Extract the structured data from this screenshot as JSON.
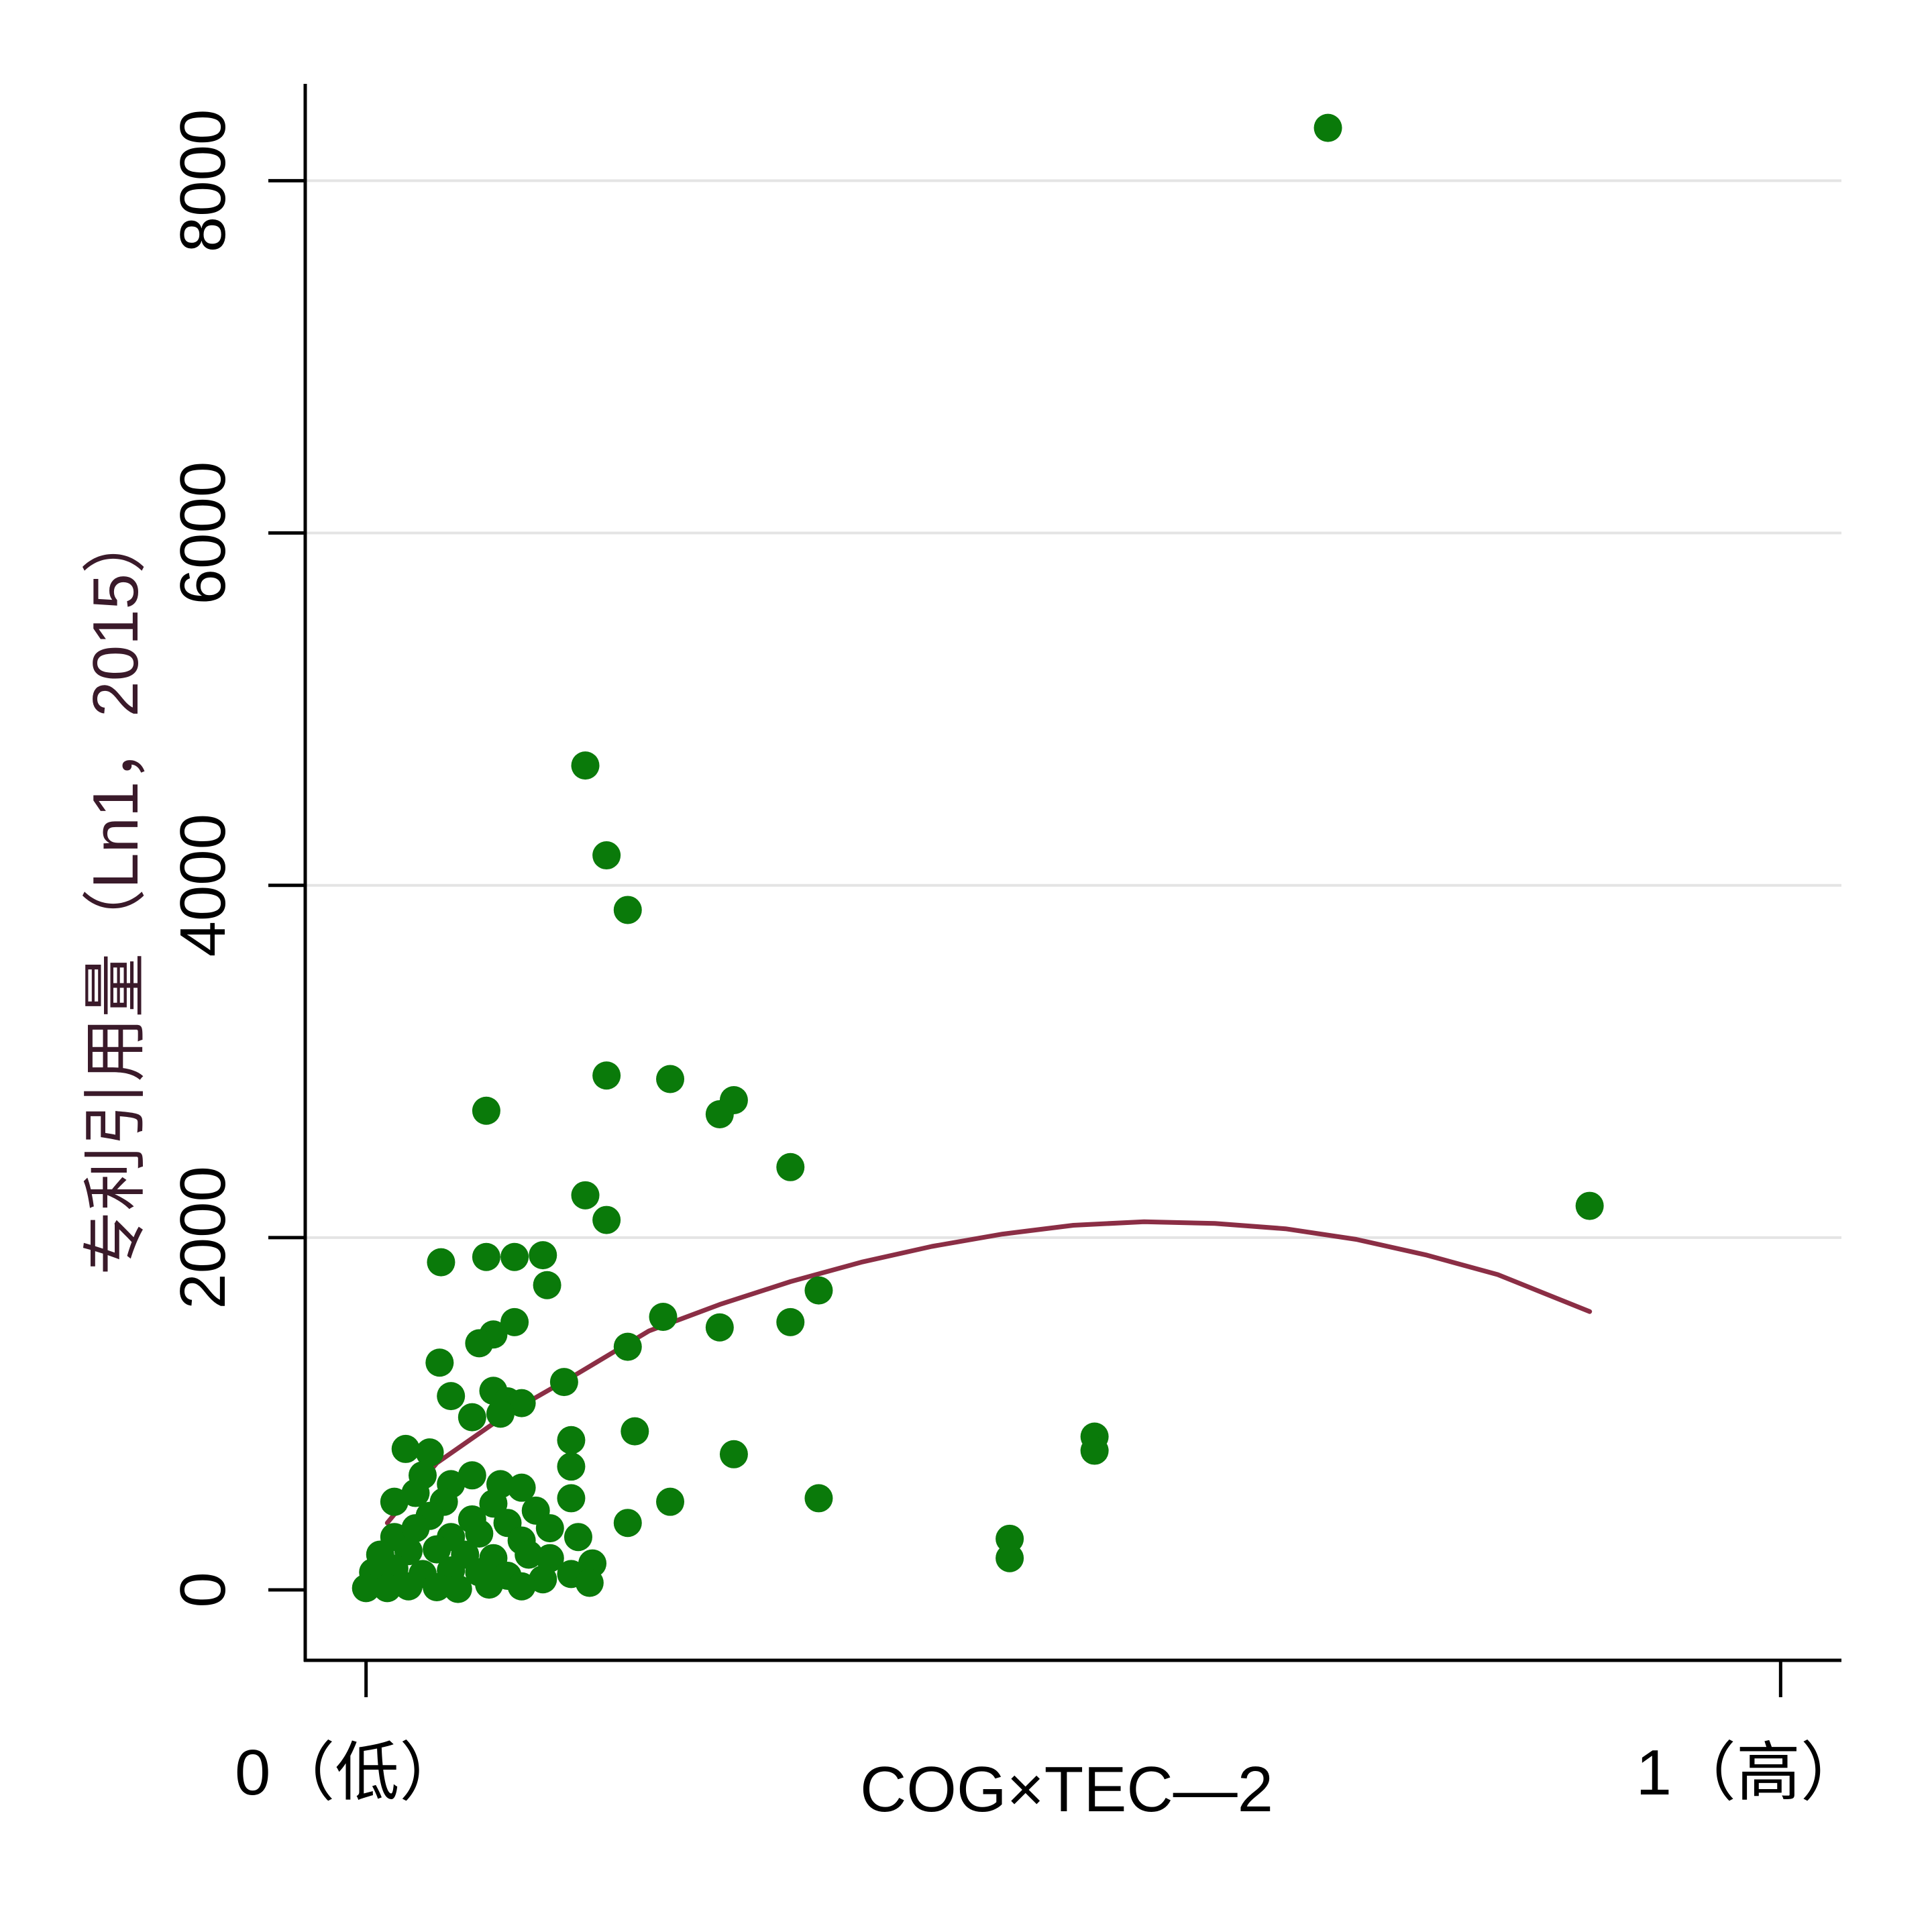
{
  "chart_data": {
    "type": "scatter",
    "xlabel": "COG×TEC—2",
    "ylabel": "专利引用量（Ln1，2015）",
    "x_tick_labels": [
      "0（低）",
      "1（高）"
    ],
    "x_ticks": [
      0,
      1
    ],
    "xlim": [
      -0.043,
      1.043
    ],
    "y_ticks": [
      0,
      2000,
      4000,
      6000,
      8000
    ],
    "ylim": [
      -400,
      8550
    ],
    "grid": true,
    "colors": {
      "points": "#0a7a0a",
      "fit": "#8b2e45",
      "grid": "#e4e4e4",
      "axis": "#000000",
      "ytitle": "#3a1a2a"
    },
    "series": [
      {
        "kind": "points",
        "points": [
          [
            0.68,
            8300
          ],
          [
            0.155,
            4680
          ],
          [
            0.17,
            4170
          ],
          [
            0.185,
            3860
          ],
          [
            0.17,
            2920
          ],
          [
            0.215,
            2900
          ],
          [
            0.26,
            2780
          ],
          [
            0.25,
            2700
          ],
          [
            0.085,
            2720
          ],
          [
            0.3,
            2400
          ],
          [
            0.155,
            2240
          ],
          [
            0.17,
            2100
          ],
          [
            0.865,
            2180
          ],
          [
            0.125,
            1900
          ],
          [
            0.085,
            1890
          ],
          [
            0.105,
            1890
          ],
          [
            0.053,
            1860
          ],
          [
            0.128,
            1730
          ],
          [
            0.32,
            1700
          ],
          [
            0.21,
            1550
          ],
          [
            0.25,
            1490
          ],
          [
            0.3,
            1520
          ],
          [
            0.185,
            1380
          ],
          [
            0.105,
            1520
          ],
          [
            0.09,
            1450
          ],
          [
            0.08,
            1400
          ],
          [
            0.052,
            1290
          ],
          [
            0.14,
            1180
          ],
          [
            0.06,
            1100
          ],
          [
            0.09,
            1130
          ],
          [
            0.1,
            1070
          ],
          [
            0.11,
            1060
          ],
          [
            0.075,
            980
          ],
          [
            0.095,
            1000
          ],
          [
            0.19,
            900
          ],
          [
            0.145,
            850
          ],
          [
            0.515,
            870
          ],
          [
            0.515,
            790
          ],
          [
            0.26,
            770
          ],
          [
            0.028,
            800
          ],
          [
            0.045,
            780
          ],
          [
            0.145,
            700
          ],
          [
            0.04,
            650
          ],
          [
            0.095,
            600
          ],
          [
            0.06,
            600
          ],
          [
            0.075,
            650
          ],
          [
            0.035,
            550
          ],
          [
            0.11,
            580
          ],
          [
            0.145,
            520
          ],
          [
            0.215,
            500
          ],
          [
            0.32,
            520
          ],
          [
            0.02,
            500
          ],
          [
            0.055,
            500
          ],
          [
            0.09,
            490
          ],
          [
            0.12,
            450
          ],
          [
            0.185,
            380
          ],
          [
            0.045,
            420
          ],
          [
            0.075,
            400
          ],
          [
            0.1,
            380
          ],
          [
            0.13,
            350
          ],
          [
            0.15,
            300
          ],
          [
            0.02,
            300
          ],
          [
            0.035,
            350
          ],
          [
            0.06,
            300
          ],
          [
            0.08,
            320
          ],
          [
            0.11,
            280
          ],
          [
            0.115,
            200
          ],
          [
            0.455,
            290
          ],
          [
            0.455,
            180
          ],
          [
            0.01,
            200
          ],
          [
            0.03,
            220
          ],
          [
            0.05,
            230
          ],
          [
            0.07,
            200
          ],
          [
            0.09,
            180
          ],
          [
            0.13,
            180
          ],
          [
            0.16,
            150
          ],
          [
            0.005,
            100
          ],
          [
            0.02,
            120
          ],
          [
            0.04,
            90
          ],
          [
            0.06,
            110
          ],
          [
            0.08,
            100
          ],
          [
            0.1,
            80
          ],
          [
            0.125,
            60
          ],
          [
            0.145,
            90
          ],
          [
            0.158,
            40
          ],
          [
            0.0,
            10
          ],
          [
            0.015,
            10
          ],
          [
            0.03,
            20
          ],
          [
            0.05,
            15
          ],
          [
            0.065,
            5
          ],
          [
            0.087,
            30
          ],
          [
            0.11,
            20
          ]
        ]
      },
      {
        "kind": "fit",
        "points": [
          [
            0.015,
            380
          ],
          [
            0.05,
            720
          ],
          [
            0.1,
            1000
          ],
          [
            0.15,
            1230
          ],
          [
            0.2,
            1470
          ],
          [
            0.25,
            1620
          ],
          [
            0.3,
            1750
          ],
          [
            0.35,
            1860
          ],
          [
            0.4,
            1950
          ],
          [
            0.45,
            2020
          ],
          [
            0.5,
            2070
          ],
          [
            0.55,
            2090
          ],
          [
            0.6,
            2080
          ],
          [
            0.65,
            2050
          ],
          [
            0.7,
            1990
          ],
          [
            0.75,
            1900
          ],
          [
            0.8,
            1790
          ],
          [
            0.865,
            1580
          ]
        ]
      }
    ]
  }
}
